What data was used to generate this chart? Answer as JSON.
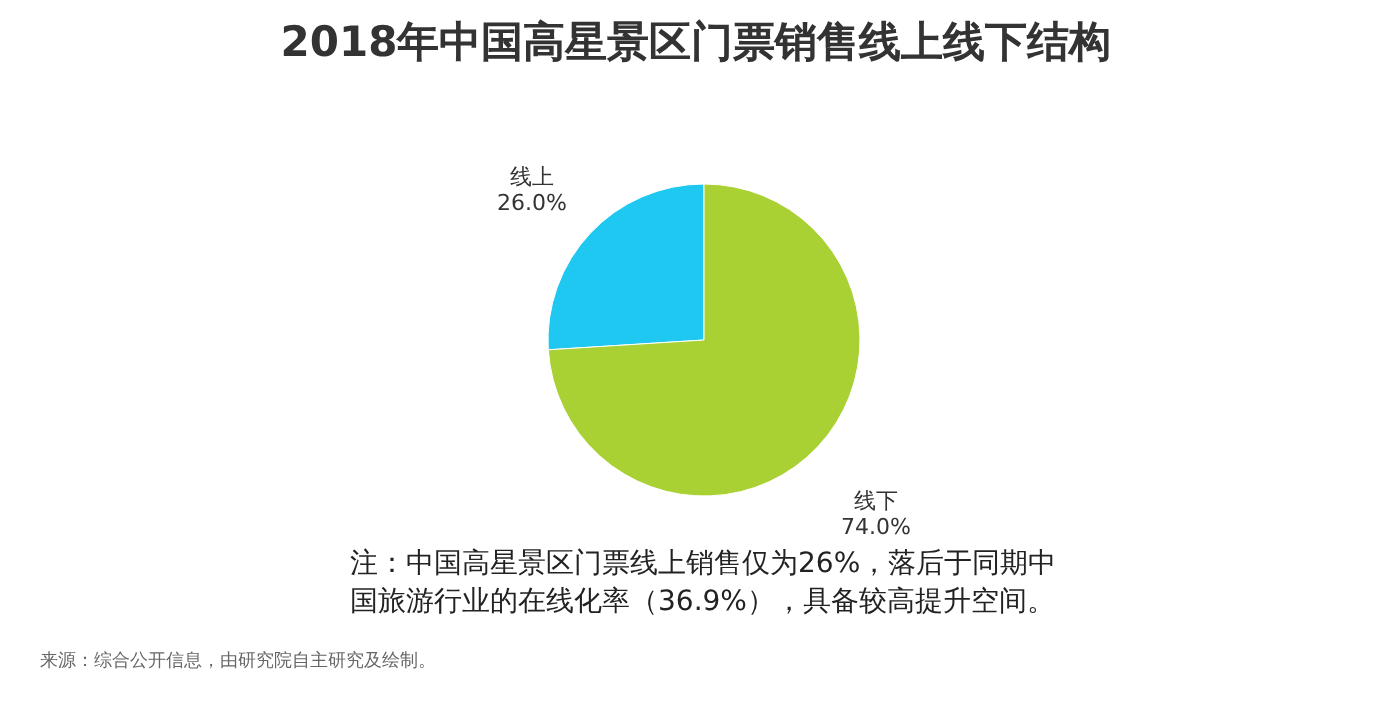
{
  "chart_data": {
    "type": "pie",
    "title": "2018年中国高星景区门票销售线上线下结构",
    "categories": [
      "线上",
      "线下"
    ],
    "values": [
      26.0,
      74.0
    ],
    "colors": [
      "#1ec8f0",
      "#a9d134"
    ],
    "value_labels": [
      "26.0%",
      "74.0%"
    ],
    "annotations": [
      "注：中国高星景区门票线上销售仅为26%，落后于同期中",
      "国旅游行业的在线化率（36.9%），具备较高提升空间。",
      "来源：综合公开信息，由研究院自主研究及绘制。"
    ]
  }
}
